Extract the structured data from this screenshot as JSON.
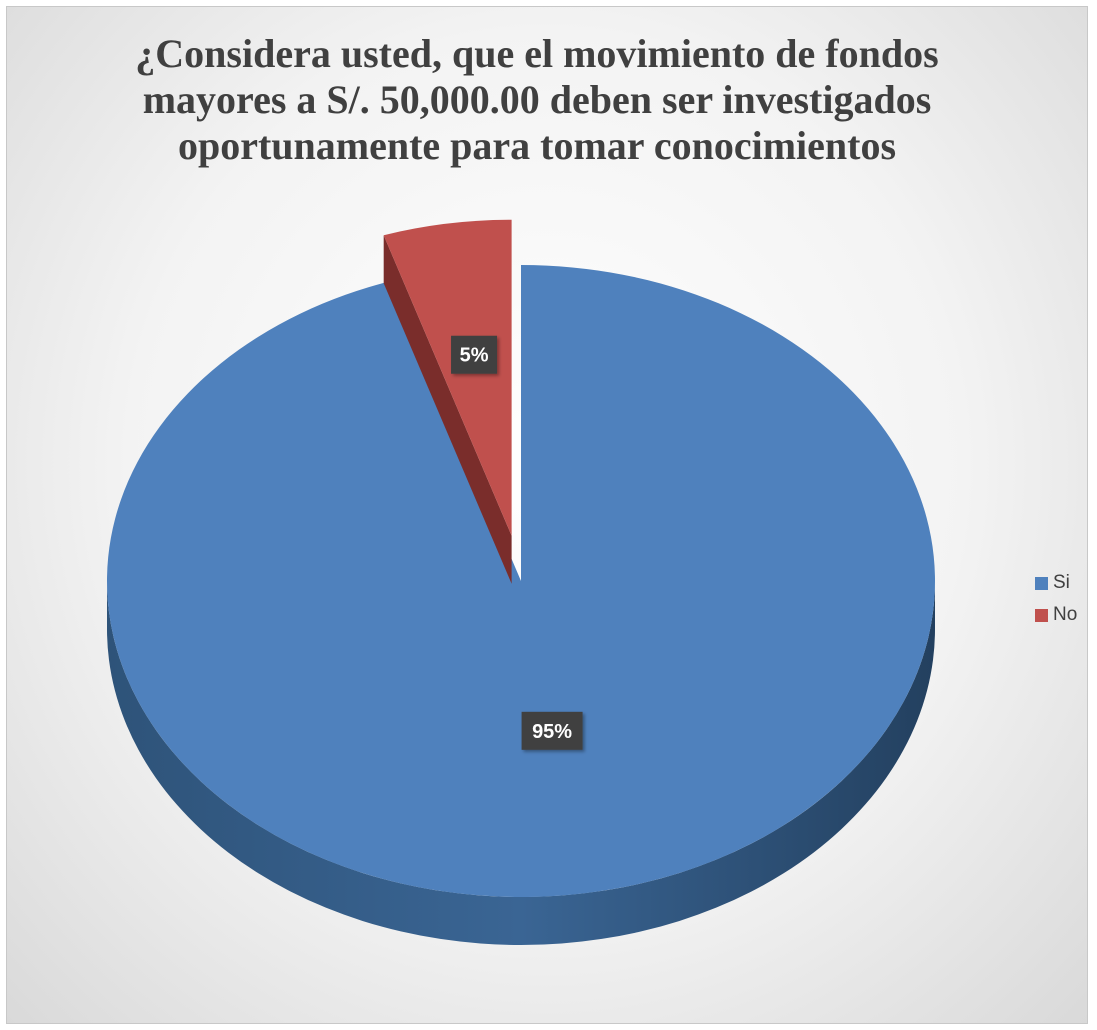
{
  "chart_data": {
    "type": "pie",
    "title": "¿Considera usted, que el movimiento de fondos mayores a S/. 50,000.00 deben ser investigados oportunamente para tomar conocimientos",
    "categories": [
      "Si",
      "No"
    ],
    "values": [
      95,
      5
    ],
    "data_labels": [
      "95%",
      "5%"
    ],
    "colors": [
      "#4F81BD",
      "#C0504D"
    ],
    "exploded": [
      false,
      true
    ],
    "style": "3d",
    "legend_position": "right"
  }
}
